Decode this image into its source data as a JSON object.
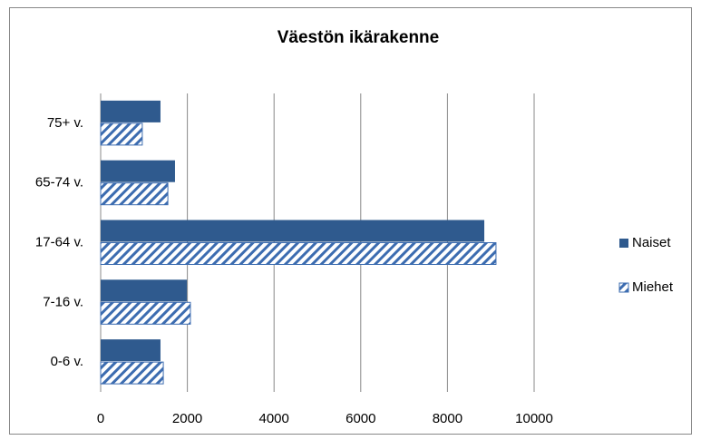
{
  "chart_data": {
    "type": "barh",
    "title": "Väestön ikärakenne",
    "categories": [
      "0-6 v.",
      "7-16 v.",
      "17-64 v.",
      "65-74 v.",
      "75+ v."
    ],
    "series": [
      {
        "name": "Naiset",
        "color": "#2f5a8e",
        "fill": "solid",
        "values": [
          1380,
          1990,
          8850,
          1715,
          1380
        ]
      },
      {
        "name": "Miehet",
        "color": "#3c6cb0",
        "fill": "hatch",
        "values": [
          1445,
          2070,
          9120,
          1550,
          960
        ]
      }
    ],
    "xlim": [
      0,
      10000
    ],
    "xticks": [
      0,
      2000,
      4000,
      6000,
      8000,
      10000
    ],
    "grid": true,
    "legend": "right"
  }
}
